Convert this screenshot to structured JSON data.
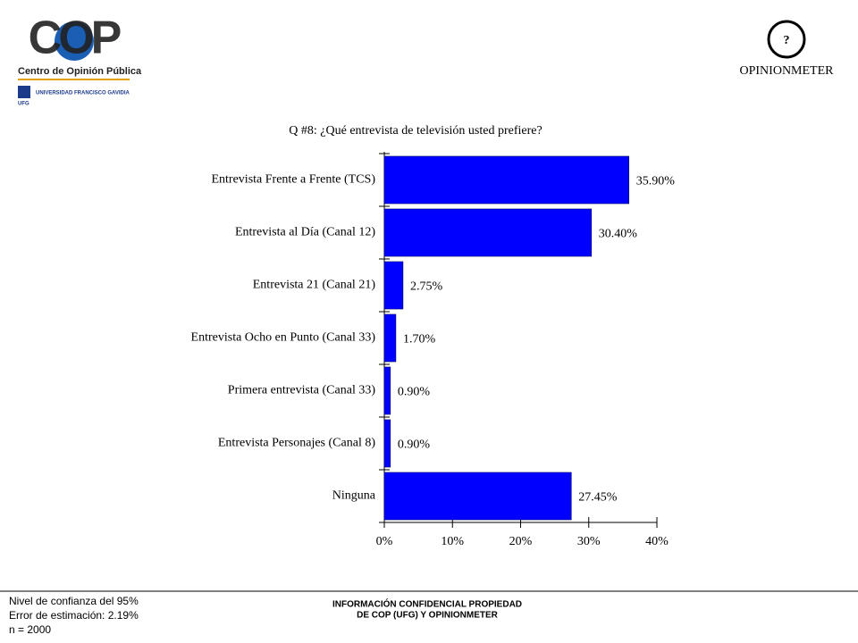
{
  "header": {
    "logo_left": "COP",
    "logo_left_subtitle": "Centro de Opinión Pública",
    "logo_left_university": "UNIVERSIDAD FRANCISCO GAVIDIA",
    "logo_left_abbr": "UFG",
    "logo_right": "OPINIONMETER"
  },
  "chart_data": {
    "type": "hbar",
    "title": "Q #8: ¿Qué entrevista de televisión usted prefiere?",
    "categories": [
      "Entrevista Frente a Frente (TCS)",
      "Entrevista al Día (Canal 12)",
      "Entrevista 21 (Canal 21)",
      "Entrevista Ocho en Punto (Canal 33)",
      "Primera entrevista (Canal 33)",
      "Entrevista Personajes (Canal 8)",
      "Ninguna"
    ],
    "values": [
      35.9,
      30.4,
      2.75,
      1.7,
      0.9,
      0.9,
      27.45
    ],
    "value_labels": [
      "35.90%",
      "30.40%",
      "2.75%",
      "1.70%",
      "0.90%",
      "0.90%",
      "27.45%"
    ],
    "color": "#0000ff",
    "xlim": [
      0,
      40
    ],
    "xticks": [
      {
        "value": 0,
        "label": "0%"
      },
      {
        "value": 10,
        "label": "10%"
      },
      {
        "value": 20,
        "label": "20%"
      },
      {
        "value": 30,
        "label": "30%"
      },
      {
        "value": 40,
        "label": "40%"
      }
    ],
    "grid": false
  },
  "footer": {
    "left": [
      "Nivel de confianza del 95%",
      "Error de estimación: 2.19%",
      "n = 2000"
    ],
    "center": [
      "INFORMACIÓN CONFIDENCIAL PROPIEDAD",
      "DE COP (UFG) Y OPINIONMETER"
    ]
  }
}
